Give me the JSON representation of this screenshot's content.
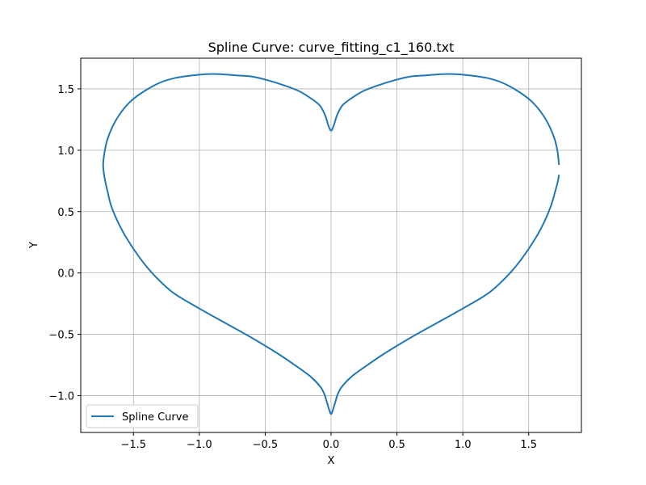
{
  "chart_data": {
    "type": "line",
    "title": "Spline Curve: curve_fitting_c1_160.txt",
    "xlabel": "X",
    "ylabel": "Y",
    "xlim": [
      -1.9,
      1.9
    ],
    "ylim": [
      -1.3,
      1.75
    ],
    "xticks": [
      -1.5,
      -1.0,
      -0.5,
      0.0,
      0.5,
      1.0,
      1.5
    ],
    "xtick_labels": [
      "−1.5",
      "−1.0",
      "−0.5",
      "0.0",
      "0.5",
      "1.0",
      "1.5"
    ],
    "yticks": [
      -1.0,
      -0.5,
      0.0,
      0.5,
      1.0,
      1.5
    ],
    "ytick_labels": [
      "−1.0",
      "−0.5",
      "0.0",
      "0.5",
      "1.0",
      "1.5"
    ],
    "grid": true,
    "legend": {
      "position": "lower-left",
      "entries": [
        "Spline Curve"
      ]
    },
    "series": [
      {
        "name": "Spline Curve",
        "color": "#1f77b4",
        "points": [
          [
            1.73,
            0.88
          ],
          [
            1.72,
            0.98
          ],
          [
            1.7,
            1.08
          ],
          [
            1.66,
            1.19
          ],
          [
            1.6,
            1.3
          ],
          [
            1.52,
            1.4
          ],
          [
            1.42,
            1.48
          ],
          [
            1.3,
            1.55
          ],
          [
            1.18,
            1.59
          ],
          [
            1.05,
            1.61
          ],
          [
            0.95,
            1.62
          ],
          [
            0.84,
            1.62
          ],
          [
            0.72,
            1.61
          ],
          [
            0.6,
            1.6
          ],
          [
            0.48,
            1.57
          ],
          [
            0.36,
            1.53
          ],
          [
            0.24,
            1.48
          ],
          [
            0.15,
            1.42
          ],
          [
            0.09,
            1.37
          ],
          [
            0.06,
            1.32
          ],
          [
            0.04,
            1.27
          ],
          [
            0.02,
            1.2
          ],
          [
            0.0,
            1.16
          ],
          [
            -0.02,
            1.2
          ],
          [
            -0.04,
            1.27
          ],
          [
            -0.06,
            1.32
          ],
          [
            -0.09,
            1.37
          ],
          [
            -0.15,
            1.42
          ],
          [
            -0.24,
            1.48
          ],
          [
            -0.36,
            1.53
          ],
          [
            -0.48,
            1.57
          ],
          [
            -0.6,
            1.6
          ],
          [
            -0.72,
            1.61
          ],
          [
            -0.84,
            1.62
          ],
          [
            -0.95,
            1.62
          ],
          [
            -1.05,
            1.61
          ],
          [
            -1.18,
            1.59
          ],
          [
            -1.3,
            1.55
          ],
          [
            -1.42,
            1.48
          ],
          [
            -1.52,
            1.4
          ],
          [
            -1.6,
            1.3
          ],
          [
            -1.66,
            1.19
          ],
          [
            -1.7,
            1.08
          ],
          [
            -1.72,
            0.98
          ],
          [
            -1.73,
            0.88
          ],
          [
            -1.72,
            0.78
          ],
          [
            -1.7,
            0.68
          ],
          [
            -1.67,
            0.55
          ],
          [
            -1.62,
            0.42
          ],
          [
            -1.55,
            0.28
          ],
          [
            -1.45,
            0.12
          ],
          [
            -1.35,
            -0.01
          ],
          [
            -1.2,
            -0.16
          ],
          [
            -1.0,
            -0.29
          ],
          [
            -0.8,
            -0.41
          ],
          [
            -0.6,
            -0.53
          ],
          [
            -0.4,
            -0.66
          ],
          [
            -0.25,
            -0.77
          ],
          [
            -0.15,
            -0.85
          ],
          [
            -0.08,
            -0.93
          ],
          [
            -0.05,
            -0.99
          ],
          [
            -0.03,
            -1.06
          ],
          [
            -0.01,
            -1.13
          ],
          [
            0.0,
            -1.15
          ],
          [
            0.01,
            -1.13
          ],
          [
            0.03,
            -1.06
          ],
          [
            0.05,
            -0.99
          ],
          [
            0.08,
            -0.93
          ],
          [
            0.15,
            -0.85
          ],
          [
            0.25,
            -0.77
          ],
          [
            0.4,
            -0.66
          ],
          [
            0.6,
            -0.53
          ],
          [
            0.8,
            -0.41
          ],
          [
            1.0,
            -0.29
          ],
          [
            1.2,
            -0.16
          ],
          [
            1.35,
            -0.01
          ],
          [
            1.45,
            0.12
          ],
          [
            1.55,
            0.28
          ],
          [
            1.62,
            0.42
          ],
          [
            1.67,
            0.55
          ],
          [
            1.7,
            0.66
          ],
          [
            1.72,
            0.74
          ],
          [
            1.73,
            0.8
          ]
        ]
      }
    ]
  }
}
